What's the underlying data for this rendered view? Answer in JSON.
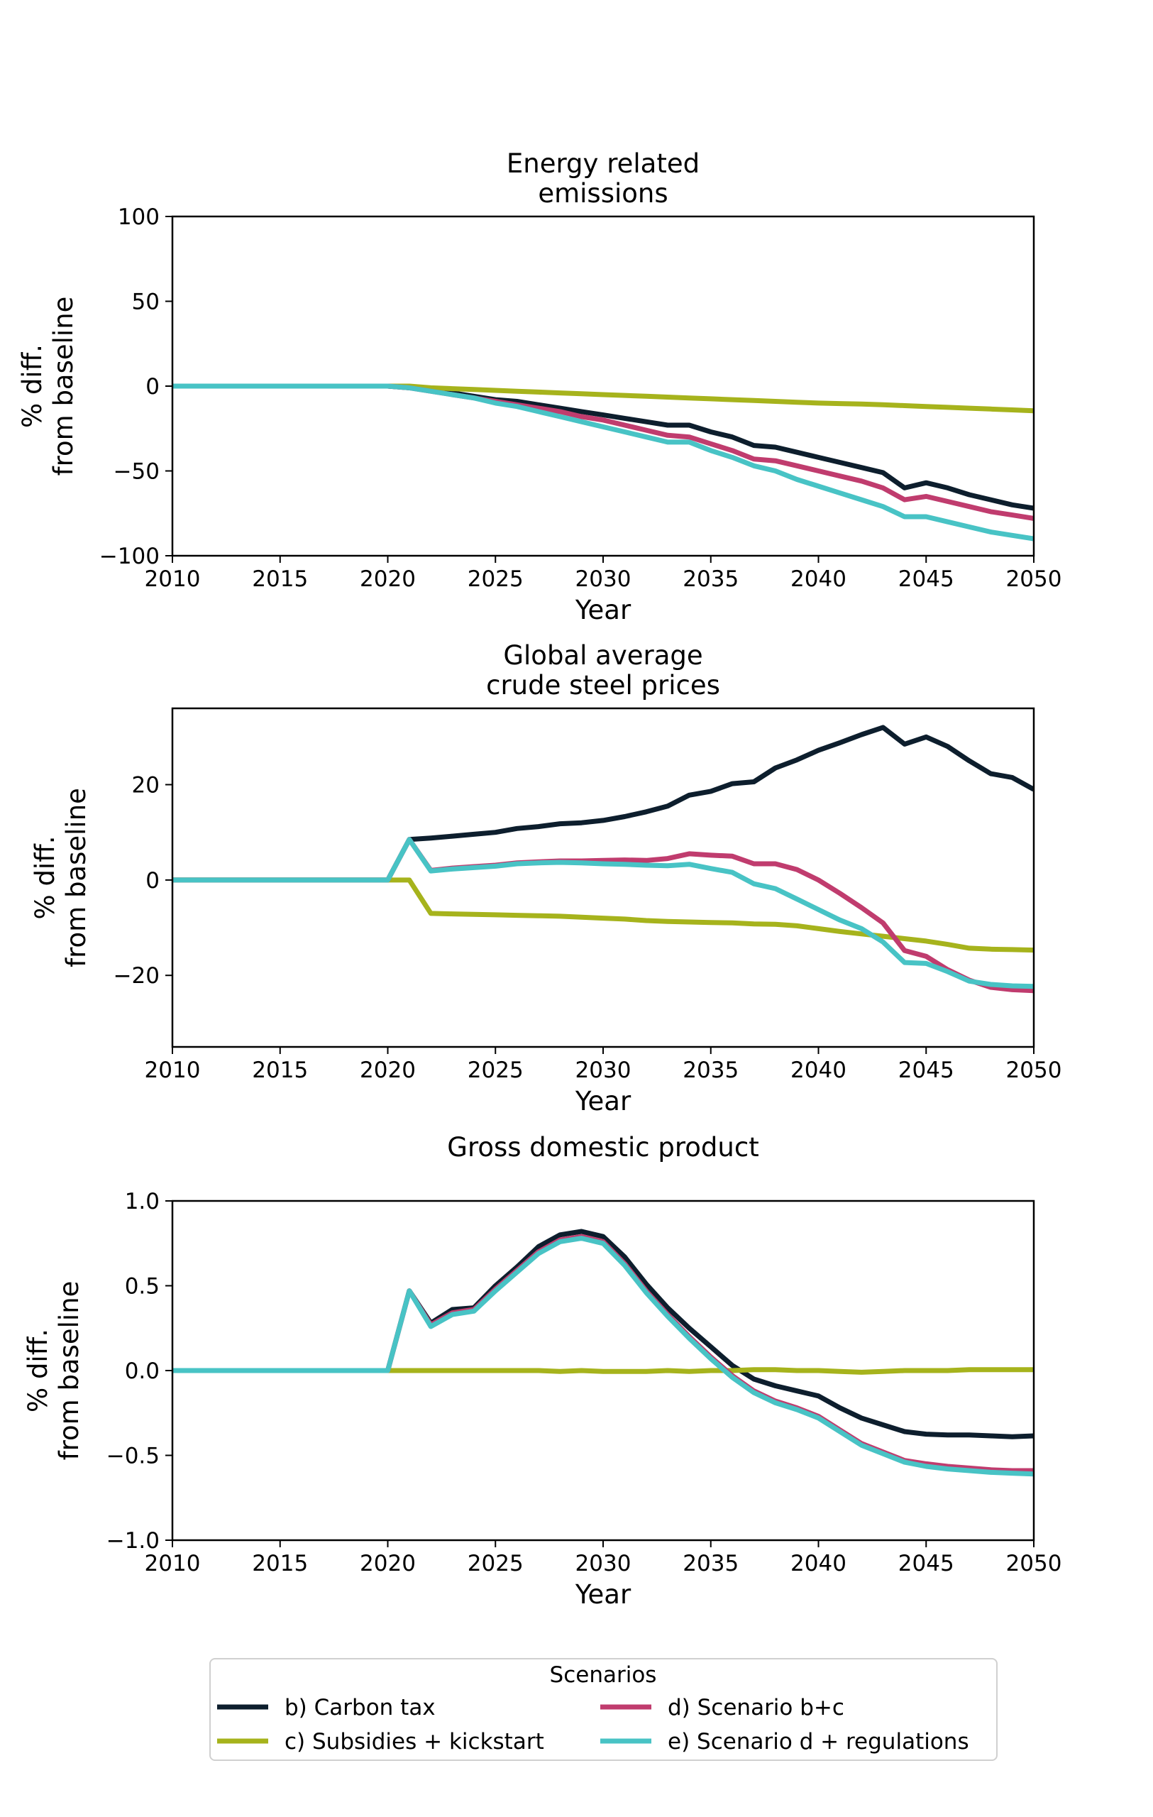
{
  "chart_data": [
    {
      "type": "line",
      "title": "Energy related\nemissions",
      "xlabel": "Year",
      "ylabel": "% diff.\nfrom baseline",
      "xlim": [
        2010,
        2050
      ],
      "ylim": [
        -100,
        100
      ],
      "xticks": [
        2010,
        2015,
        2020,
        2025,
        2030,
        2035,
        2040,
        2045,
        2050
      ],
      "yticks": [
        -100,
        -50,
        0,
        50,
        100
      ],
      "ytick_labels": [
        "−100",
        "−50",
        "0",
        "50",
        "100"
      ],
      "grid": false,
      "x": [
        2010,
        2011,
        2012,
        2013,
        2014,
        2015,
        2016,
        2017,
        2018,
        2019,
        2020,
        2021,
        2022,
        2023,
        2024,
        2025,
        2026,
        2027,
        2028,
        2029,
        2030,
        2031,
        2032,
        2033,
        2034,
        2035,
        2036,
        2037,
        2038,
        2039,
        2040,
        2041,
        2042,
        2043,
        2044,
        2045,
        2046,
        2047,
        2048,
        2049,
        2050
      ],
      "series": [
        {
          "name": "b) Carbon tax",
          "values": [
            0,
            0,
            0,
            0,
            0,
            0,
            0,
            0,
            0,
            0,
            0,
            -1,
            -2,
            -4,
            -6,
            -8,
            -9,
            -11,
            -13,
            -15,
            -17,
            -19,
            -21,
            -23,
            -23,
            -27,
            -30,
            -35,
            -36,
            -39,
            -42,
            -45,
            -48,
            -51,
            -60,
            -57,
            -60,
            -64,
            -67,
            -70,
            -72
          ]
        },
        {
          "name": "c) Subsidies + kickstart",
          "values": [
            0,
            0,
            0,
            0,
            0,
            0,
            0,
            0,
            0,
            0,
            0,
            0,
            -1,
            -1.5,
            -2,
            -2.5,
            -3,
            -3.5,
            -4,
            -4.5,
            -5,
            -5.5,
            -6,
            -6.5,
            -7,
            -7.5,
            -8,
            -8.5,
            -9,
            -9.5,
            -10,
            -10.3,
            -10.6,
            -11,
            -11.5,
            -12,
            -12.5,
            -13,
            -13.5,
            -14,
            -14.5
          ]
        },
        {
          "name": "d) Scenario b+c",
          "values": [
            0,
            0,
            0,
            0,
            0,
            0,
            0,
            0,
            0,
            0,
            0,
            -1,
            -3,
            -5,
            -7,
            -9,
            -11,
            -13,
            -15,
            -18,
            -20,
            -23,
            -26,
            -29,
            -30,
            -34,
            -38,
            -43,
            -44,
            -47,
            -50,
            -53,
            -56,
            -60,
            -67,
            -65,
            -68,
            -71,
            -74,
            -76,
            -78
          ]
        },
        {
          "name": "e) Scenario d + regulations",
          "values": [
            0,
            0,
            0,
            0,
            0,
            0,
            0,
            0,
            0,
            0,
            0,
            -1,
            -3,
            -5,
            -7,
            -10,
            -12,
            -15,
            -18,
            -21,
            -24,
            -27,
            -30,
            -33,
            -33,
            -38,
            -42,
            -47,
            -50,
            -55,
            -59,
            -63,
            -67,
            -71,
            -77,
            -77,
            -80,
            -83,
            -86,
            -88,
            -90
          ]
        }
      ]
    },
    {
      "type": "line",
      "title": "Global average\ncrude steel prices",
      "xlabel": "Year",
      "ylabel": "% diff.\nfrom baseline",
      "xlim": [
        2010,
        2050
      ],
      "ylim": [
        -35,
        36
      ],
      "xticks": [
        2010,
        2015,
        2020,
        2025,
        2030,
        2035,
        2040,
        2045,
        2050
      ],
      "yticks": [
        -20,
        0,
        20
      ],
      "ytick_labels": [
        "−20",
        "0",
        "20"
      ],
      "grid": false,
      "x": [
        2010,
        2011,
        2012,
        2013,
        2014,
        2015,
        2016,
        2017,
        2018,
        2019,
        2020,
        2021,
        2022,
        2023,
        2024,
        2025,
        2026,
        2027,
        2028,
        2029,
        2030,
        2031,
        2032,
        2033,
        2034,
        2035,
        2036,
        2037,
        2038,
        2039,
        2040,
        2041,
        2042,
        2043,
        2044,
        2045,
        2046,
        2047,
        2048,
        2049,
        2050
      ],
      "series": [
        {
          "name": "b) Carbon tax",
          "values": [
            0,
            0,
            0,
            0,
            0,
            0,
            0,
            0,
            0,
            0,
            0,
            8.5,
            8.8,
            9.2,
            9.6,
            10,
            10.8,
            11.2,
            11.8,
            12,
            12.5,
            13.3,
            14.3,
            15.5,
            17.8,
            18.6,
            20.2,
            20.6,
            23.5,
            25.2,
            27.2,
            28.8,
            30.5,
            32,
            28.5,
            30,
            28,
            25,
            22.3,
            21.5,
            19
          ]
        },
        {
          "name": "c) Subsidies + kickstart",
          "values": [
            0,
            0,
            0,
            0,
            0,
            0,
            0,
            0,
            0,
            0,
            0,
            0,
            -7,
            -7.1,
            -7.2,
            -7.3,
            -7.4,
            -7.5,
            -7.6,
            -7.8,
            -8,
            -8.2,
            -8.5,
            -8.7,
            -8.8,
            -8.9,
            -9,
            -9.2,
            -9.3,
            -9.6,
            -10.2,
            -10.8,
            -11.3,
            -11.8,
            -12.3,
            -12.8,
            -13.5,
            -14.3,
            -14.5,
            -14.6,
            -14.7
          ]
        },
        {
          "name": "d) Scenario b+c",
          "values": [
            0,
            0,
            0,
            0,
            0,
            0,
            0,
            0,
            0,
            0,
            0,
            8.5,
            2,
            2.5,
            2.8,
            3.1,
            3.6,
            3.8,
            4,
            4,
            4.1,
            4.2,
            4.1,
            4.5,
            5.5,
            5.2,
            5,
            3.4,
            3.4,
            2.2,
            0,
            -2.8,
            -5.8,
            -9,
            -14.8,
            -16,
            -18.8,
            -21,
            -22.5,
            -23,
            -23.2
          ]
        },
        {
          "name": "e) Scenario d + regulations",
          "values": [
            0,
            0,
            0,
            0,
            0,
            0,
            0,
            0,
            0,
            0,
            0,
            8.5,
            1.9,
            2.3,
            2.6,
            2.9,
            3.4,
            3.6,
            3.7,
            3.6,
            3.4,
            3.3,
            3.1,
            3,
            3.3,
            2.4,
            1.6,
            -0.8,
            -1.8,
            -4,
            -6.2,
            -8.4,
            -10.2,
            -13,
            -17.3,
            -17.5,
            -19.2,
            -21.2,
            -21.9,
            -22.2,
            -22.3
          ]
        }
      ]
    },
    {
      "type": "line",
      "title": "Gross domestic product",
      "xlabel": "Year",
      "ylabel": "% diff.\nfrom baseline",
      "xlim": [
        2010,
        2050
      ],
      "ylim": [
        -1.0,
        1.0
      ],
      "xticks": [
        2010,
        2015,
        2020,
        2025,
        2030,
        2035,
        2040,
        2045,
        2050
      ],
      "yticks": [
        -1.0,
        -0.5,
        0.0,
        0.5,
        1.0
      ],
      "ytick_labels": [
        "−1.0",
        "−0.5",
        "0.0",
        "0.5",
        "1.0"
      ],
      "grid": false,
      "x": [
        2010,
        2011,
        2012,
        2013,
        2014,
        2015,
        2016,
        2017,
        2018,
        2019,
        2020,
        2021,
        2022,
        2023,
        2024,
        2025,
        2026,
        2027,
        2028,
        2029,
        2030,
        2031,
        2032,
        2033,
        2034,
        2035,
        2036,
        2037,
        2038,
        2039,
        2040,
        2041,
        2042,
        2043,
        2044,
        2045,
        2046,
        2047,
        2048,
        2049,
        2050
      ],
      "series": [
        {
          "name": "b) Carbon tax",
          "values": [
            0,
            0,
            0,
            0,
            0,
            0,
            0,
            0,
            0,
            0,
            0,
            0.47,
            0.28,
            0.36,
            0.37,
            0.5,
            0.61,
            0.73,
            0.8,
            0.82,
            0.79,
            0.67,
            0.51,
            0.37,
            0.25,
            0.14,
            0.03,
            -0.05,
            -0.09,
            -0.12,
            -0.15,
            -0.22,
            -0.28,
            -0.32,
            -0.36,
            -0.375,
            -0.38,
            -0.38,
            -0.385,
            -0.39,
            -0.385
          ]
        },
        {
          "name": "c) Subsidies + kickstart",
          "values": [
            0,
            0,
            0,
            0,
            0,
            0,
            0,
            0,
            0,
            0,
            0,
            0,
            0,
            0,
            0,
            0,
            0,
            0,
            -0.005,
            0,
            -0.005,
            -0.005,
            -0.005,
            0,
            -0.005,
            0,
            0,
            0.005,
            0.005,
            0,
            0,
            -0.005,
            -0.01,
            -0.005,
            0,
            0,
            0,
            0.005,
            0.005,
            0.005,
            0.005
          ]
        },
        {
          "name": "d) Scenario b+c",
          "values": [
            0,
            0,
            0,
            0,
            0,
            0,
            0,
            0,
            0,
            0,
            0,
            0.47,
            0.27,
            0.34,
            0.36,
            0.48,
            0.59,
            0.7,
            0.77,
            0.79,
            0.76,
            0.63,
            0.47,
            0.33,
            0.2,
            0.08,
            -0.03,
            -0.12,
            -0.18,
            -0.22,
            -0.27,
            -0.35,
            -0.43,
            -0.48,
            -0.53,
            -0.55,
            -0.565,
            -0.575,
            -0.585,
            -0.59,
            -0.59
          ]
        },
        {
          "name": "e) Scenario d + regulations",
          "values": [
            0,
            0,
            0,
            0,
            0,
            0,
            0,
            0,
            0,
            0,
            0,
            0.47,
            0.26,
            0.33,
            0.35,
            0.47,
            0.58,
            0.69,
            0.76,
            0.78,
            0.75,
            0.62,
            0.46,
            0.32,
            0.19,
            0.07,
            -0.04,
            -0.13,
            -0.19,
            -0.23,
            -0.28,
            -0.36,
            -0.44,
            -0.49,
            -0.54,
            -0.565,
            -0.58,
            -0.59,
            -0.6,
            -0.605,
            -0.61
          ]
        }
      ]
    }
  ],
  "legend": {
    "title": "Scenarios",
    "placement": "bottom-center",
    "entries": [
      {
        "label": "b) Carbon tax",
        "color": "#0d1e2d"
      },
      {
        "label": "c) Subsidies + kickstart",
        "color": "#a6b31c"
      },
      {
        "label": "d) Scenario b+c",
        "color": "#c03c6e"
      },
      {
        "label": "e) Scenario d + regulations",
        "color": "#48c3c5"
      }
    ]
  },
  "colors": {
    "b_carbon_tax": "#0d1e2d",
    "c_subsidies": "#a6b31c",
    "d_scenario_bc": "#c03c6e",
    "e_scenario_d_regulations": "#48c3c5"
  }
}
